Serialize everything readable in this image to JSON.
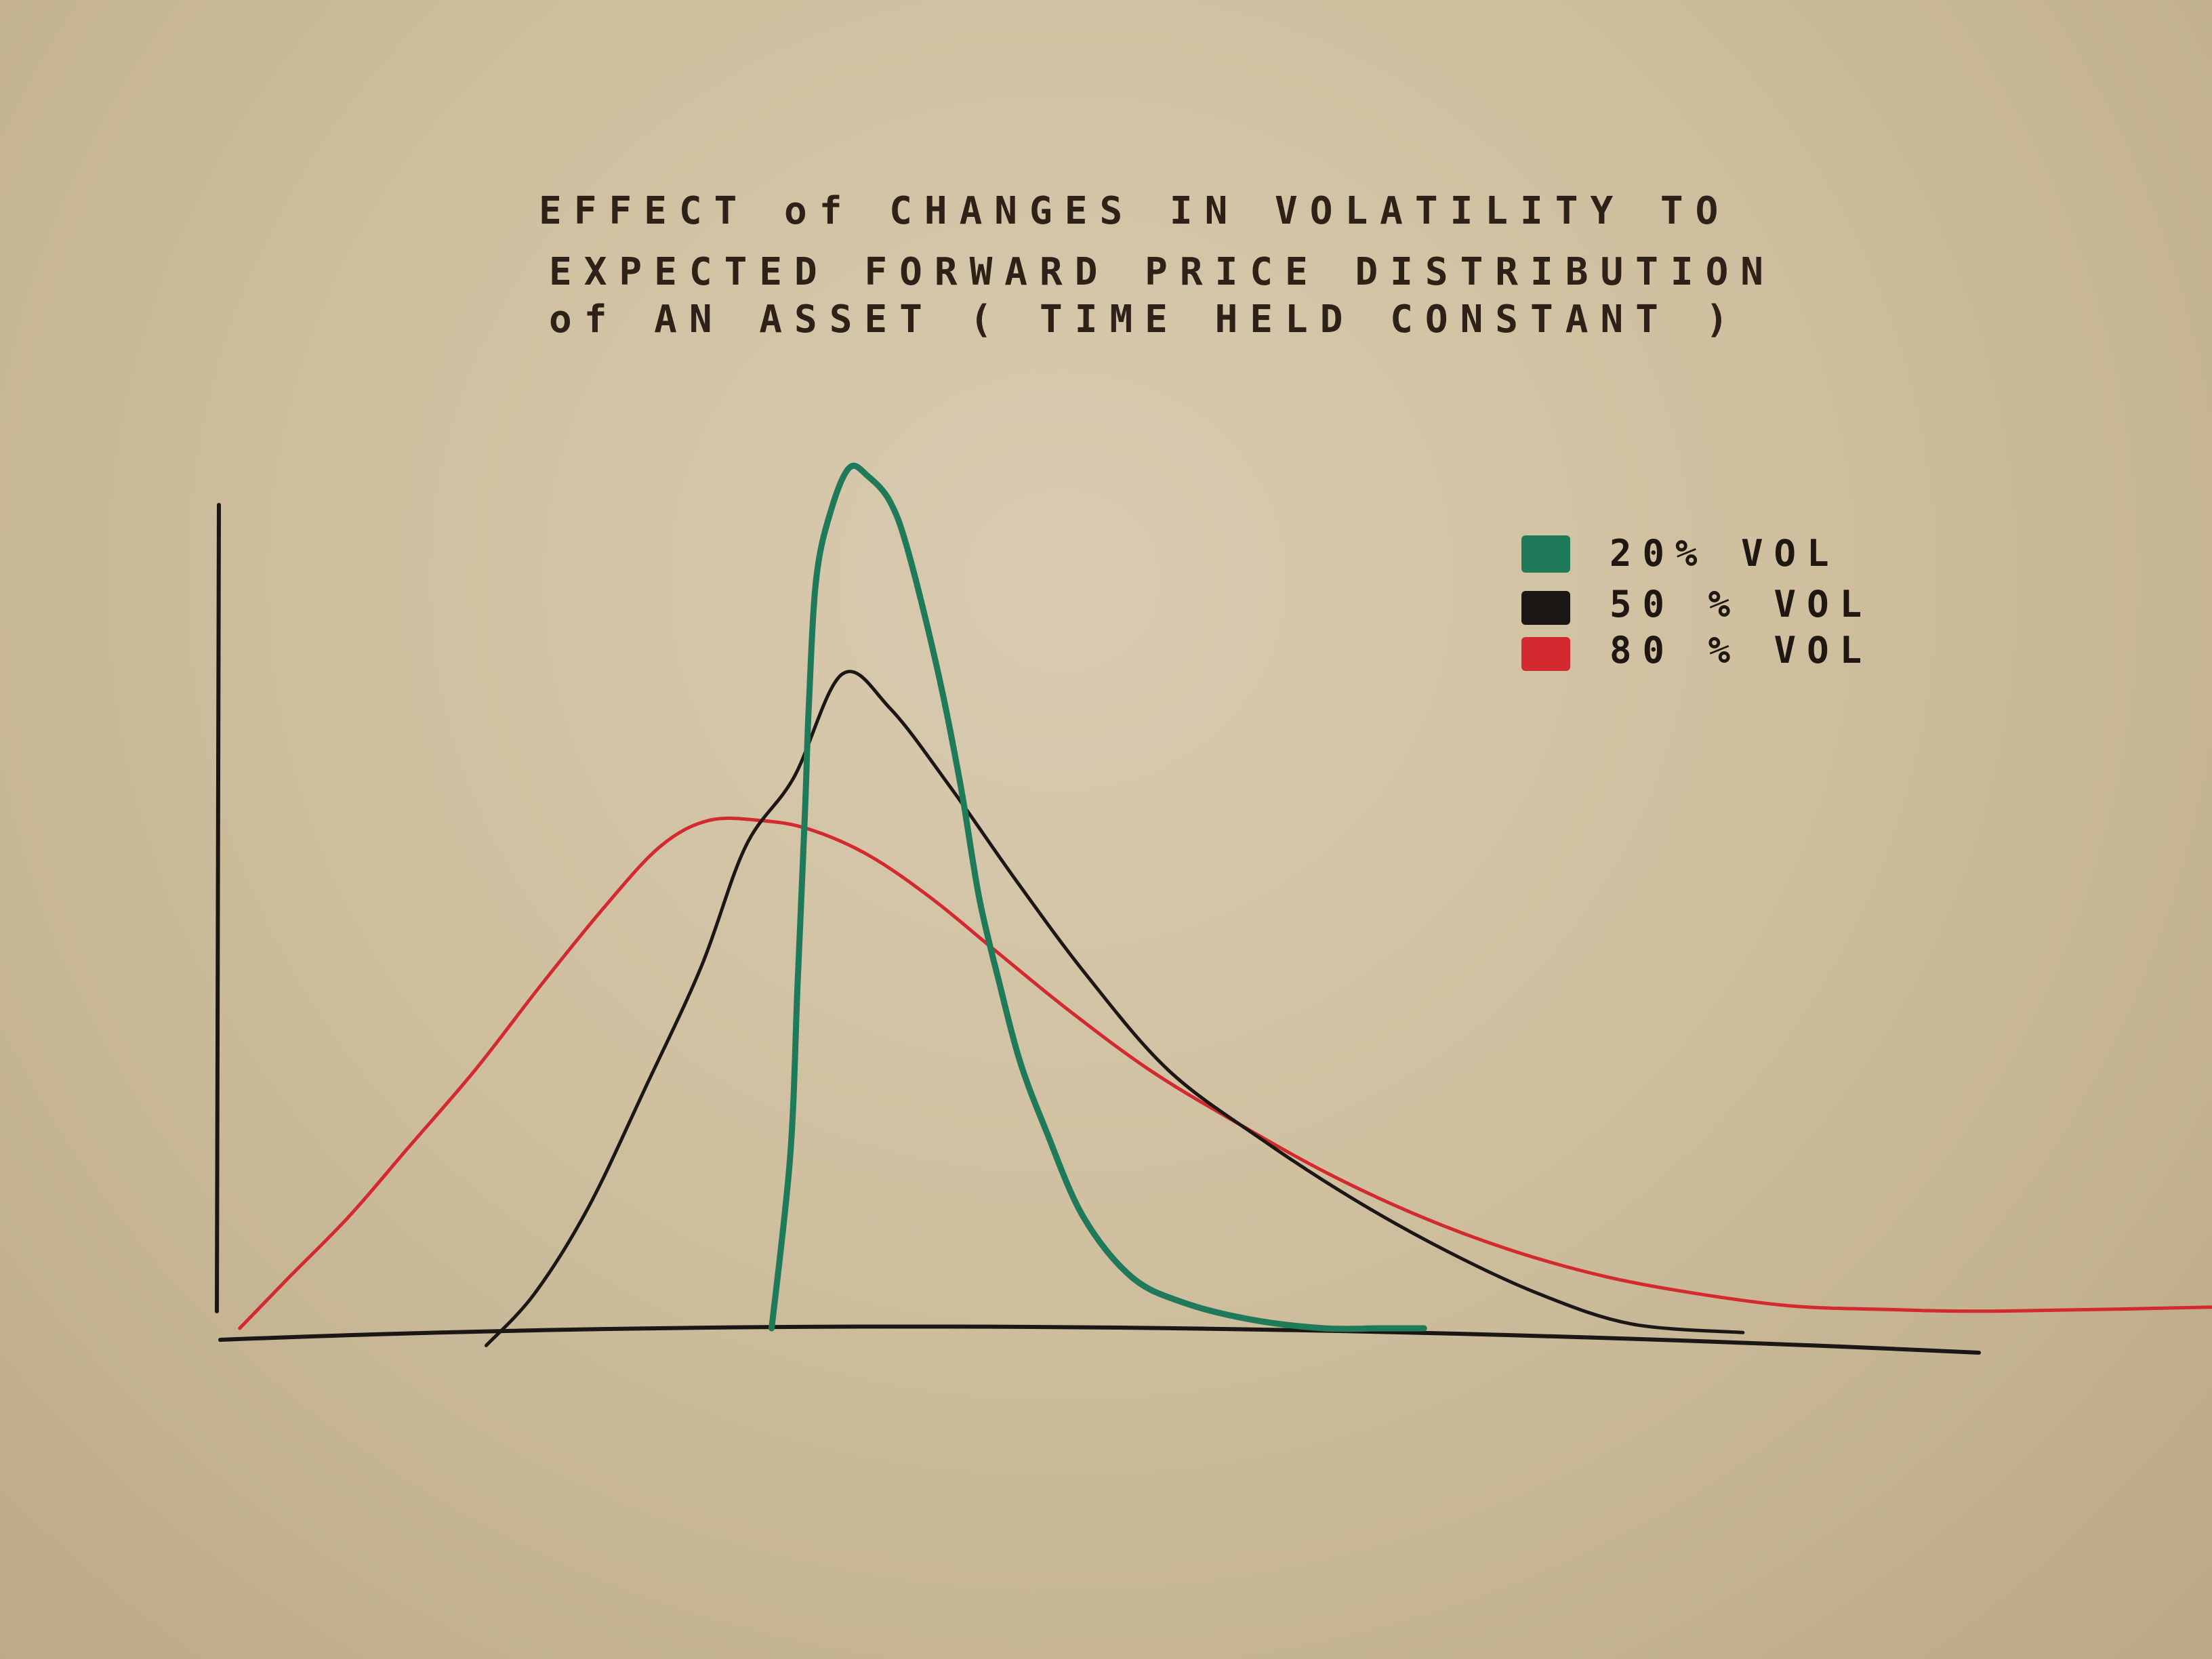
{
  "chart_data": {
    "type": "line",
    "title_lines": [
      "EFFECT of CHANGES IN VOLATILITY TO",
      "EXPECTED FORWARD PRICE DISTRIBUTION",
      "of AN ASSET ( TIME HELD CONSTANT )"
    ],
    "xlabel": "",
    "ylabel": "",
    "xlim": [
      0,
      100
    ],
    "ylim": [
      0,
      100
    ],
    "grid": false,
    "legend_position": "top-right",
    "series": [
      {
        "name": "20% VOL",
        "color": "#1f7a5a",
        "x": [
          29.2,
          30.2,
          30.6,
          31.0,
          31.2,
          31.6,
          32.4,
          33.4,
          34.4,
          35.6,
          36.6,
          38.2,
          39.4,
          40.4,
          41.5,
          42.6,
          44.0,
          46.0,
          48.6,
          51.4,
          55.1,
          59.0,
          62.0,
          64.4
        ],
        "y": [
          0,
          20,
          40,
          60,
          72,
          87,
          95,
          100,
          99,
          96,
          90,
          76,
          63,
          50,
          40,
          31,
          23,
          13,
          6,
          3,
          1,
          0,
          0,
          0
        ]
      },
      {
        "name": "50 % VOL",
        "color": "#1b1715",
        "x": [
          13.8,
          16.4,
          19.3,
          22.4,
          25.4,
          27.8,
          30.4,
          33.0,
          35.6,
          38.8,
          42.4,
          46.2,
          50.6,
          55.6,
          60.6,
          65.6,
          70.6,
          75.6,
          81.6
        ],
        "y": [
          -2,
          4,
          14,
          28,
          42,
          56,
          64,
          76,
          72,
          63,
          52,
          41,
          30,
          22,
          15,
          9,
          4,
          0.5,
          -0.5
        ]
      },
      {
        "name": "80 % VOL",
        "color": "#d22a2e",
        "x": [
          0.5,
          3.2,
          6.4,
          9.6,
          13.2,
          16.8,
          20.2,
          23.2,
          25.8,
          28.6,
          31.2,
          34.4,
          37.8,
          41.2,
          45.2,
          49.6,
          54.2,
          59.2,
          64.2,
          69.2,
          74.2,
          79.2,
          84.2,
          89.2,
          95.6,
          109.8
        ],
        "y": [
          0,
          6,
          13,
          21,
          30,
          40,
          49,
          56,
          59,
          59,
          58,
          55,
          50,
          44,
          37,
          30,
          24,
          18,
          13,
          9,
          6,
          4,
          2.6,
          2.2,
          2.0,
          2.6
        ]
      }
    ]
  }
}
